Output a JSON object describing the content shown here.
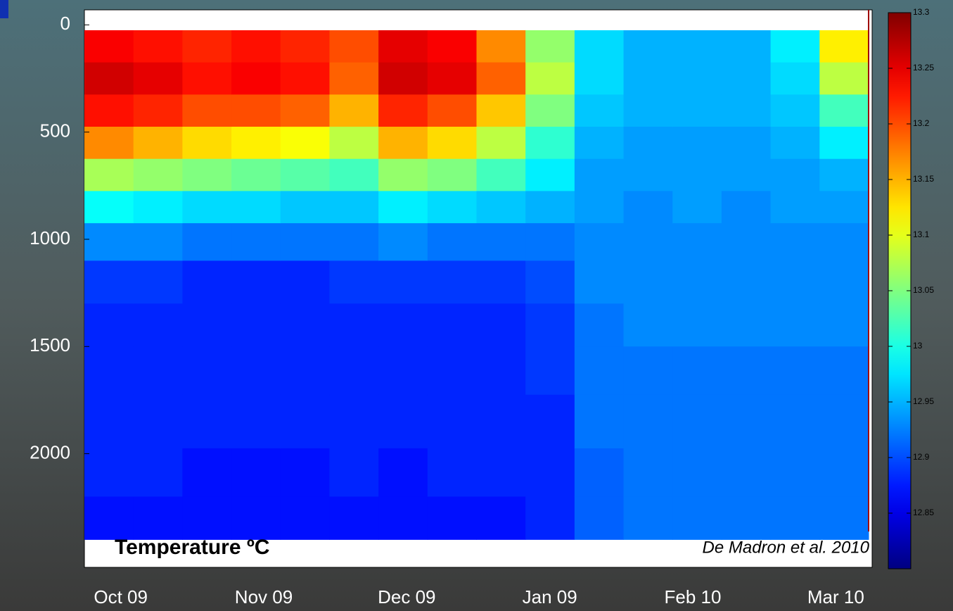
{
  "chart_data": {
    "type": "heatmap",
    "title": "Temperature ºC",
    "annotation": "De Madron  et al. 2010",
    "categories": [
      "Oct 09",
      "Nov 09",
      "Dec 09",
      "Jan 09",
      "Feb 10",
      "Mar 10"
    ],
    "ylim": [
      -70,
      2530
    ],
    "yticks": [
      0,
      500,
      1000,
      1500,
      2000
    ],
    "depths": [
      100,
      250,
      400,
      550,
      700,
      850,
      1000,
      1200,
      1400,
      1600,
      1850,
      2100,
      2300
    ],
    "z": [
      [
        13.24,
        13.26,
        13.23,
        13.17,
        13.07,
        12.99,
        12.93,
        12.89,
        12.88,
        12.88,
        12.88,
        12.88,
        12.87
      ],
      [
        13.23,
        13.25,
        13.22,
        13.15,
        13.06,
        12.98,
        12.93,
        12.89,
        12.88,
        12.88,
        12.88,
        12.88,
        12.87
      ],
      [
        13.22,
        13.23,
        13.2,
        13.13,
        13.05,
        12.97,
        12.92,
        12.88,
        12.88,
        12.88,
        12.88,
        12.87,
        12.87
      ],
      [
        13.23,
        13.24,
        13.2,
        13.12,
        13.04,
        12.97,
        12.92,
        12.88,
        12.88,
        12.88,
        12.88,
        12.87,
        12.87
      ],
      [
        13.22,
        13.23,
        13.19,
        13.11,
        13.03,
        12.96,
        12.92,
        12.88,
        12.88,
        12.88,
        12.88,
        12.87,
        12.87
      ],
      [
        13.2,
        13.19,
        13.15,
        13.08,
        13.02,
        12.96,
        12.92,
        12.89,
        12.88,
        12.88,
        12.88,
        12.88,
        12.87
      ],
      [
        13.25,
        13.26,
        13.22,
        13.15,
        13.06,
        12.98,
        12.93,
        12.89,
        12.88,
        12.88,
        12.88,
        12.87,
        12.87
      ],
      [
        13.24,
        13.25,
        13.2,
        13.13,
        13.05,
        12.97,
        12.92,
        12.89,
        12.88,
        12.88,
        12.88,
        12.88,
        12.87
      ],
      [
        13.17,
        13.19,
        13.14,
        13.08,
        13.02,
        12.96,
        12.92,
        12.89,
        12.88,
        12.88,
        12.88,
        12.88,
        12.87
      ],
      [
        13.06,
        13.08,
        13.05,
        13.01,
        12.98,
        12.95,
        12.92,
        12.9,
        12.89,
        12.89,
        12.88,
        12.88,
        12.88
      ],
      [
        12.97,
        12.97,
        12.96,
        12.95,
        12.94,
        12.94,
        12.93,
        12.93,
        12.92,
        12.92,
        12.92,
        12.91,
        12.91
      ],
      [
        12.95,
        12.95,
        12.95,
        12.94,
        12.94,
        12.93,
        12.93,
        12.93,
        12.93,
        12.92,
        12.92,
        12.92,
        12.92
      ],
      [
        12.95,
        12.95,
        12.95,
        12.94,
        12.94,
        12.94,
        12.93,
        12.93,
        12.93,
        12.92,
        12.92,
        12.92,
        12.92
      ],
      [
        12.95,
        12.95,
        12.95,
        12.94,
        12.94,
        12.93,
        12.93,
        12.93,
        12.93,
        12.92,
        12.92,
        12.92,
        12.92
      ],
      [
        12.98,
        12.97,
        12.96,
        12.95,
        12.94,
        12.94,
        12.93,
        12.93,
        12.93,
        12.92,
        12.92,
        12.92,
        12.92
      ],
      [
        13.12,
        13.08,
        13.02,
        12.98,
        12.95,
        12.94,
        12.93,
        12.93,
        12.93,
        12.92,
        12.92,
        12.92,
        12.92
      ]
    ],
    "clim": [
      12.8,
      13.3
    ],
    "cticks": [
      13.3,
      13.25,
      13.2,
      13.15,
      13.1,
      13.05,
      13,
      12.95,
      12.9,
      12.85
    ],
    "colormap": "jet"
  }
}
